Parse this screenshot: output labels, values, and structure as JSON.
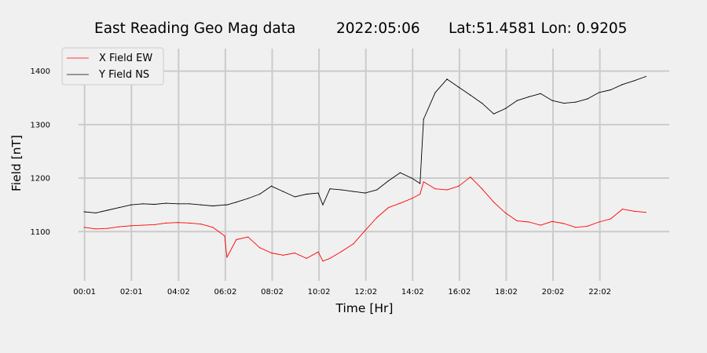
{
  "chart_data": {
    "type": "line",
    "title": {
      "station": "East Reading Geo Mag data",
      "date": "2022:05:06",
      "location": "Lat:51.4581  Lon: 0.9205"
    },
    "xlabel": "Time  [Hr]",
    "ylabel": "Field  [nT]",
    "x_unit": "hours since 00:00",
    "xlim": [
      -0.24,
      25.0
    ],
    "ylim": [
      1008,
      1442
    ],
    "x_ticks": [
      {
        "label": "00:01",
        "value": 0.0167
      },
      {
        "label": "02:01",
        "value": 2.0167
      },
      {
        "label": "04:02",
        "value": 4.0333
      },
      {
        "label": "06:02",
        "value": 6.0333
      },
      {
        "label": "08:02",
        "value": 8.0333
      },
      {
        "label": "10:02",
        "value": 10.0333
      },
      {
        "label": "12:02",
        "value": 12.0333
      },
      {
        "label": "14:02",
        "value": 14.0333
      },
      {
        "label": "16:02",
        "value": 16.0333
      },
      {
        "label": "18:02",
        "value": 18.0333
      },
      {
        "label": "20:02",
        "value": 20.0333
      },
      {
        "label": "22:02",
        "value": 22.0333
      }
    ],
    "y_ticks": [
      1100,
      1200,
      1300,
      1400
    ],
    "grid": true,
    "legend_position": "top-left",
    "x": [
      0.0,
      0.5,
      1.0,
      1.5,
      2.0,
      2.5,
      3.0,
      3.5,
      4.0,
      4.5,
      5.0,
      5.5,
      6.0,
      6.1,
      6.5,
      7.0,
      7.5,
      8.0,
      8.5,
      9.0,
      9.5,
      10.0,
      10.2,
      10.5,
      11.0,
      11.5,
      12.0,
      12.5,
      13.0,
      13.5,
      14.0,
      14.35,
      14.5,
      15.0,
      15.5,
      16.0,
      16.5,
      17.0,
      17.5,
      18.0,
      18.5,
      19.0,
      19.5,
      20.0,
      20.5,
      21.0,
      21.5,
      22.0,
      22.5,
      23.0,
      23.5,
      24.0
    ],
    "series": [
      {
        "name": "X Field EW",
        "color": "#ff0000",
        "values": [
          1108,
          1105,
          1106,
          1109,
          1111,
          1112,
          1113,
          1116,
          1117,
          1116,
          1114,
          1108,
          1092,
          1052,
          1085,
          1090,
          1070,
          1060,
          1056,
          1060,
          1050,
          1062,
          1045,
          1050,
          1063,
          1077,
          1102,
          1126,
          1145,
          1153,
          1162,
          1170,
          1193,
          1180,
          1178,
          1185,
          1202,
          1180,
          1155,
          1135,
          1120,
          1118,
          1112,
          1119,
          1115,
          1108,
          1110,
          1118,
          1124,
          1142,
          1138,
          1136
        ]
      },
      {
        "name": "Y Field NS",
        "color": "#000000",
        "values": [
          1137,
          1135,
          1140,
          1145,
          1150,
          1152,
          1151,
          1153,
          1152,
          1152,
          1150,
          1148,
          1150,
          1150,
          1155,
          1162,
          1170,
          1185,
          1175,
          1165,
          1170,
          1172,
          1150,
          1180,
          1178,
          1175,
          1172,
          1178,
          1195,
          1210,
          1200,
          1190,
          1310,
          1360,
          1385,
          1370,
          1355,
          1340,
          1320,
          1330,
          1345,
          1352,
          1358,
          1345,
          1340,
          1342,
          1348,
          1360,
          1365,
          1375,
          1382,
          1390
        ]
      }
    ]
  }
}
